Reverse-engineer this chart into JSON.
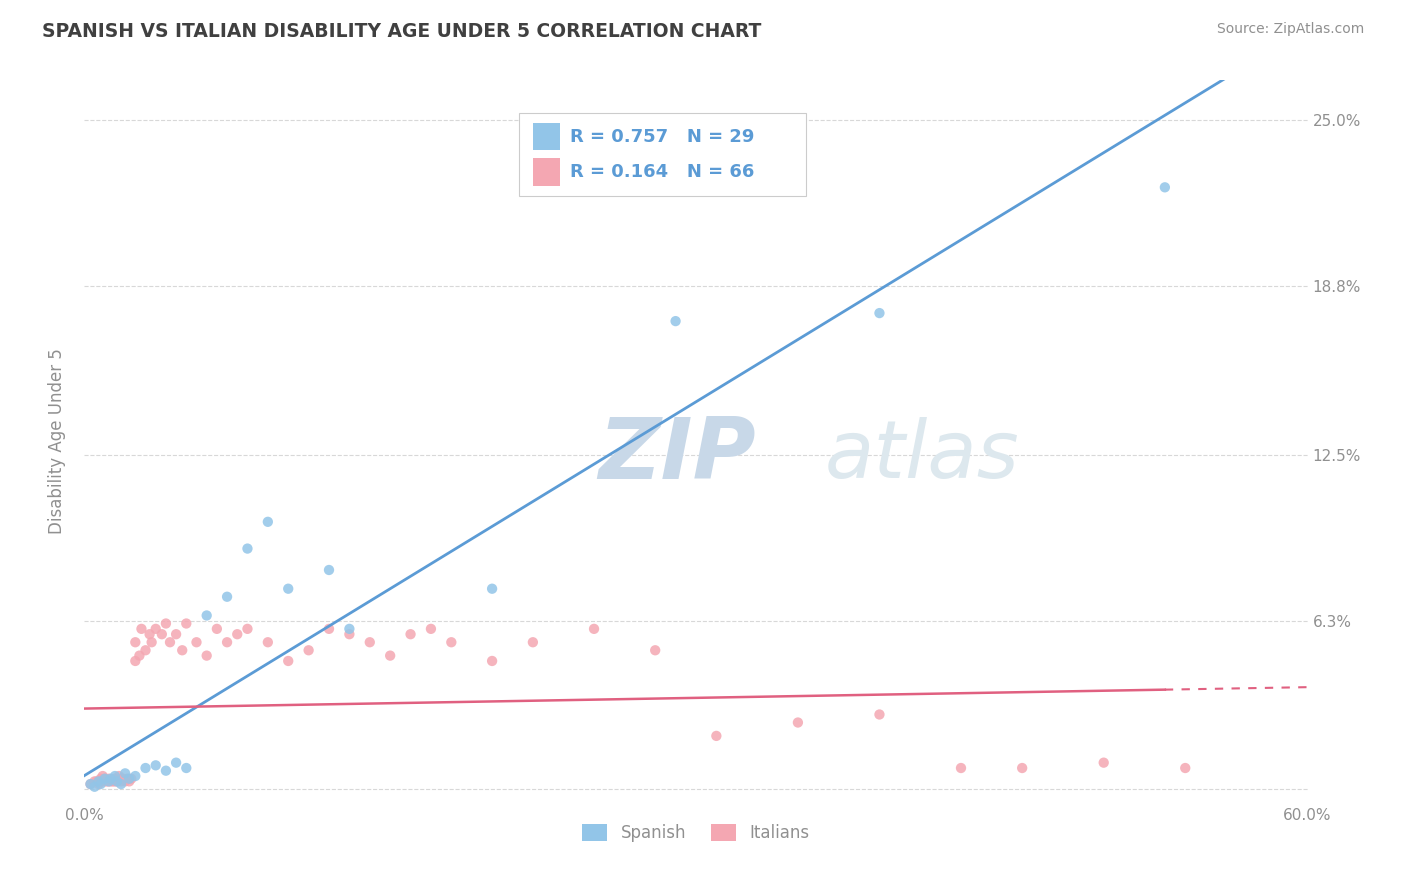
{
  "title": "SPANISH VS ITALIAN DISABILITY AGE UNDER 5 CORRELATION CHART",
  "source": "Source: ZipAtlas.com",
  "ylabel": "Disability Age Under 5",
  "xlim": [
    0.0,
    0.6
  ],
  "ylim": [
    -0.005,
    0.265
  ],
  "ytick_positions": [
    0.0,
    0.063,
    0.125,
    0.188,
    0.25
  ],
  "ytick_labels": [
    "",
    "6.3%",
    "12.5%",
    "18.8%",
    "25.0%"
  ],
  "spanish_color": "#92c5e8",
  "italian_color": "#f4a7b2",
  "spanish_line_color": "#5b9bd5",
  "italian_line_color": "#e06080",
  "watermark_color": "#dde8f0",
  "legend_r_spanish": "R = 0.757",
  "legend_n_spanish": "N = 29",
  "legend_r_italian": "R = 0.164",
  "legend_n_italian": "N = 66",
  "legend_label_spanish": "Spanish",
  "legend_label_italian": "Italians",
  "spanish_x": [
    0.003,
    0.005,
    0.007,
    0.008,
    0.01,
    0.012,
    0.013,
    0.015,
    0.016,
    0.018,
    0.02,
    0.022,
    0.025,
    0.03,
    0.035,
    0.04,
    0.045,
    0.05,
    0.06,
    0.07,
    0.08,
    0.09,
    0.1,
    0.12,
    0.13,
    0.2,
    0.29,
    0.39,
    0.53
  ],
  "spanish_y": [
    0.002,
    0.001,
    0.003,
    0.002,
    0.004,
    0.003,
    0.004,
    0.005,
    0.003,
    0.002,
    0.006,
    0.004,
    0.005,
    0.008,
    0.009,
    0.007,
    0.01,
    0.008,
    0.065,
    0.072,
    0.09,
    0.1,
    0.075,
    0.082,
    0.06,
    0.075,
    0.175,
    0.178,
    0.225
  ],
  "italian_x": [
    0.003,
    0.005,
    0.006,
    0.007,
    0.008,
    0.008,
    0.009,
    0.01,
    0.01,
    0.011,
    0.012,
    0.012,
    0.013,
    0.014,
    0.015,
    0.015,
    0.016,
    0.017,
    0.018,
    0.018,
    0.019,
    0.02,
    0.021,
    0.022,
    0.023,
    0.025,
    0.025,
    0.027,
    0.028,
    0.03,
    0.032,
    0.033,
    0.035,
    0.038,
    0.04,
    0.042,
    0.045,
    0.048,
    0.05,
    0.055,
    0.06,
    0.065,
    0.07,
    0.075,
    0.08,
    0.09,
    0.1,
    0.11,
    0.12,
    0.13,
    0.14,
    0.15,
    0.16,
    0.17,
    0.18,
    0.2,
    0.22,
    0.25,
    0.28,
    0.31,
    0.35,
    0.39,
    0.43,
    0.46,
    0.5,
    0.54
  ],
  "italian_y": [
    0.002,
    0.003,
    0.003,
    0.002,
    0.004,
    0.003,
    0.005,
    0.003,
    0.004,
    0.003,
    0.004,
    0.003,
    0.003,
    0.003,
    0.004,
    0.003,
    0.003,
    0.005,
    0.004,
    0.003,
    0.004,
    0.003,
    0.004,
    0.003,
    0.004,
    0.048,
    0.055,
    0.05,
    0.06,
    0.052,
    0.058,
    0.055,
    0.06,
    0.058,
    0.062,
    0.055,
    0.058,
    0.052,
    0.062,
    0.055,
    0.05,
    0.06,
    0.055,
    0.058,
    0.06,
    0.055,
    0.048,
    0.052,
    0.06,
    0.058,
    0.055,
    0.05,
    0.058,
    0.06,
    0.055,
    0.048,
    0.055,
    0.06,
    0.052,
    0.02,
    0.025,
    0.028,
    0.008,
    0.008,
    0.01,
    0.008
  ],
  "grid_color": "#d8d8d8",
  "title_color": "#404040",
  "tick_color": "#909090",
  "background_color": "#ffffff"
}
